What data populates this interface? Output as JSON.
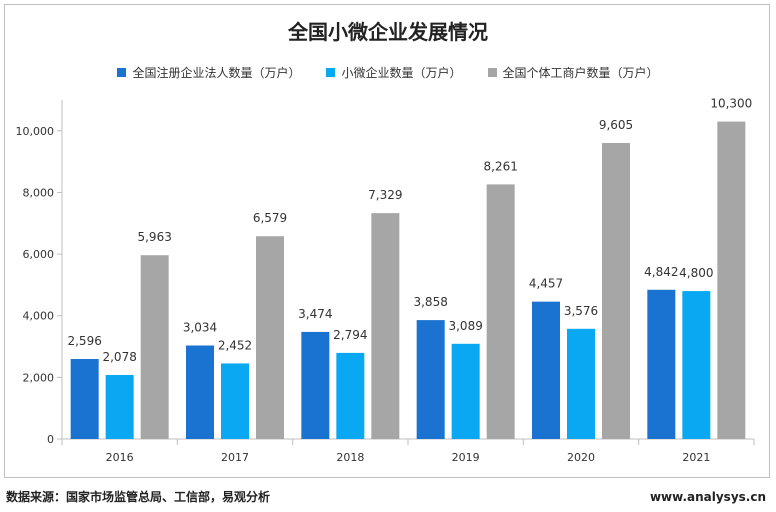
{
  "chart_data": {
    "type": "bar",
    "title": "全国小微企业发展情况",
    "categories": [
      "2016",
      "2017",
      "2018",
      "2019",
      "2020",
      "2021"
    ],
    "series": [
      {
        "name": "全国注册企业法人数量（万户）",
        "color": "#1a73d1",
        "values": [
          2596,
          3034,
          3474,
          3858,
          4457,
          4842
        ],
        "labels": [
          "2,596",
          "3,034",
          "3,474",
          "3,858",
          "4,457",
          "4,842"
        ]
      },
      {
        "name": "小微企业数量（万户）",
        "color": "#0aa8f2",
        "values": [
          2078,
          2452,
          2794,
          3089,
          3576,
          4800
        ],
        "labels": [
          "2,078",
          "2,452",
          "2,794",
          "3,089",
          "3,576",
          "4,800"
        ]
      },
      {
        "name": "全国个体工商户数量（万户）",
        "color": "#a6a6a6",
        "values": [
          5963,
          6579,
          7329,
          8261,
          9605,
          10300
        ],
        "labels": [
          "5,963",
          "6,579",
          "7,329",
          "8,261",
          "9,605",
          "10,300"
        ]
      }
    ],
    "yticks": [
      0,
      2000,
      4000,
      6000,
      8000,
      10000
    ],
    "ytick_labels": [
      "0",
      "2,000",
      "4,000",
      "6,000",
      "8,000",
      "10,000"
    ],
    "ylim": [
      0,
      11000
    ],
    "xlabel": "",
    "ylabel": "",
    "grid": false,
    "legend_position": "top"
  },
  "footer": {
    "source": "数据来源：国家市场监管总局、工信部，易观分析",
    "site": "www.analysys.cn"
  }
}
